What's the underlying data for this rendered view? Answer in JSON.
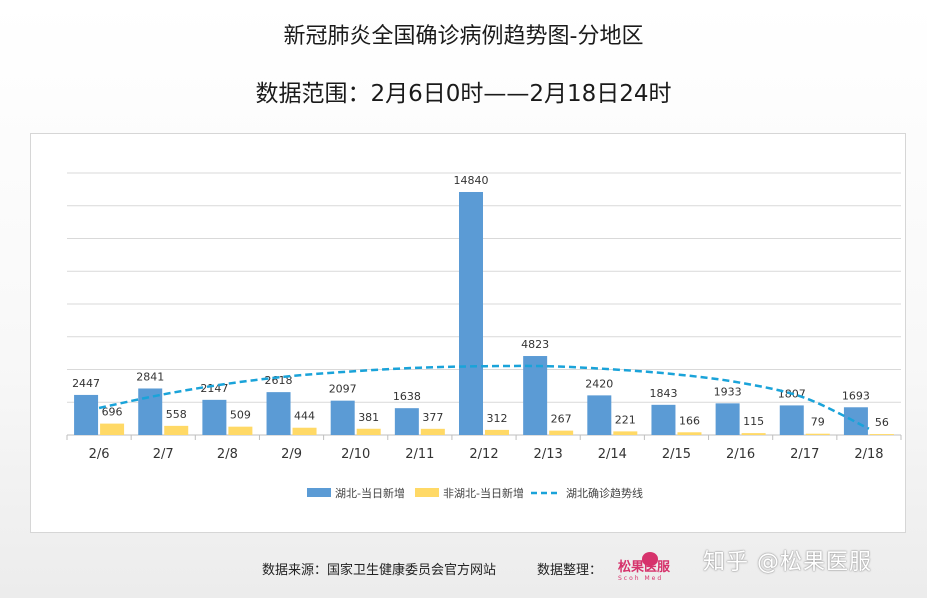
{
  "title": "新冠肺炎全国确诊病例趋势图-分地区",
  "subtitle": "数据范围：2月6日0时——2月18日24时",
  "footer": {
    "source": "数据来源：国家卫生健康委员会官方网站",
    "organizer": "数据整理：",
    "logo_text": "松果医服",
    "logo_sub": "Scoh Med"
  },
  "watermark": "知乎 @松果医服",
  "colors": {
    "hubei": "#5b9bd5",
    "non_hubei": "#ffd966",
    "trend": "#1aa3d9"
  },
  "chart_data": {
    "type": "bar",
    "categories": [
      "2/6",
      "2/7",
      "2/8",
      "2/9",
      "2/10",
      "2/11",
      "2/12",
      "2/13",
      "2/14",
      "2/15",
      "2/16",
      "2/17",
      "2/18"
    ],
    "series": [
      {
        "name": "湖北-当日新增",
        "type": "bar",
        "values": [
          2447,
          2841,
          2147,
          2618,
          2097,
          1638,
          14840,
          4823,
          2420,
          1843,
          1933,
          1807,
          1693
        ]
      },
      {
        "name": "非湖北-当日新增",
        "type": "bar",
        "values": [
          696,
          558,
          509,
          444,
          381,
          377,
          312,
          267,
          221,
          166,
          115,
          79,
          56
        ]
      },
      {
        "name": "湖北确诊趋势线",
        "type": "line",
        "style": "dashed",
        "values": [
          1650,
          2480,
          3130,
          3600,
          3900,
          4110,
          4200,
          4200,
          4010,
          3700,
          3190,
          2270,
          380
        ]
      }
    ],
    "ylim": [
      0,
      16000
    ],
    "grid": true,
    "legend_position": "bottom"
  }
}
